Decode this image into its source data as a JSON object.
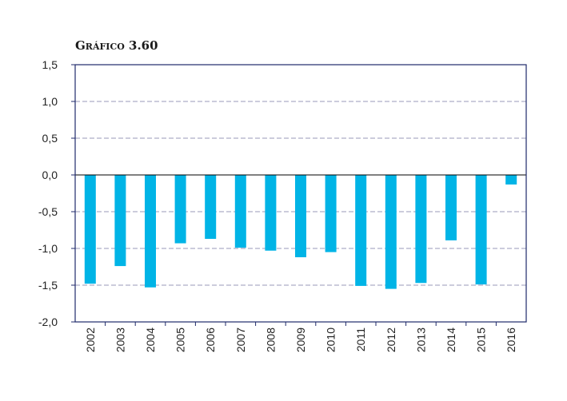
{
  "chart_data": {
    "type": "bar",
    "title": "Gráfico 3.60",
    "xlabel": "",
    "ylabel": "",
    "categories": [
      "2002",
      "2003",
      "2004",
      "2005",
      "2006",
      "2007",
      "2008",
      "2009",
      "2010",
      "2011",
      "2012",
      "2013",
      "2014",
      "2015",
      "2016"
    ],
    "values": [
      -1.48,
      -1.24,
      -1.53,
      -0.93,
      -0.87,
      -0.99,
      -1.03,
      -1.12,
      -1.05,
      -1.51,
      -1.55,
      -1.47,
      -0.89,
      -1.49,
      -0.13
    ],
    "ylim": [
      -2.0,
      1.5
    ],
    "yticks": [
      1.5,
      1.0,
      0.5,
      0.0,
      -0.5,
      -1.0,
      -1.5,
      -2.0
    ],
    "ytick_labels": [
      "1,5",
      "1,0",
      "0,5",
      "0,0",
      "-0,5",
      "-1,0",
      "-1,5",
      "-2,0"
    ],
    "grid": true,
    "legend": "none",
    "colors": {
      "bar": "#00b4e6",
      "frame": "#1f2a6b",
      "grid": "#9a9ab8",
      "zero_line": "#000000"
    }
  }
}
